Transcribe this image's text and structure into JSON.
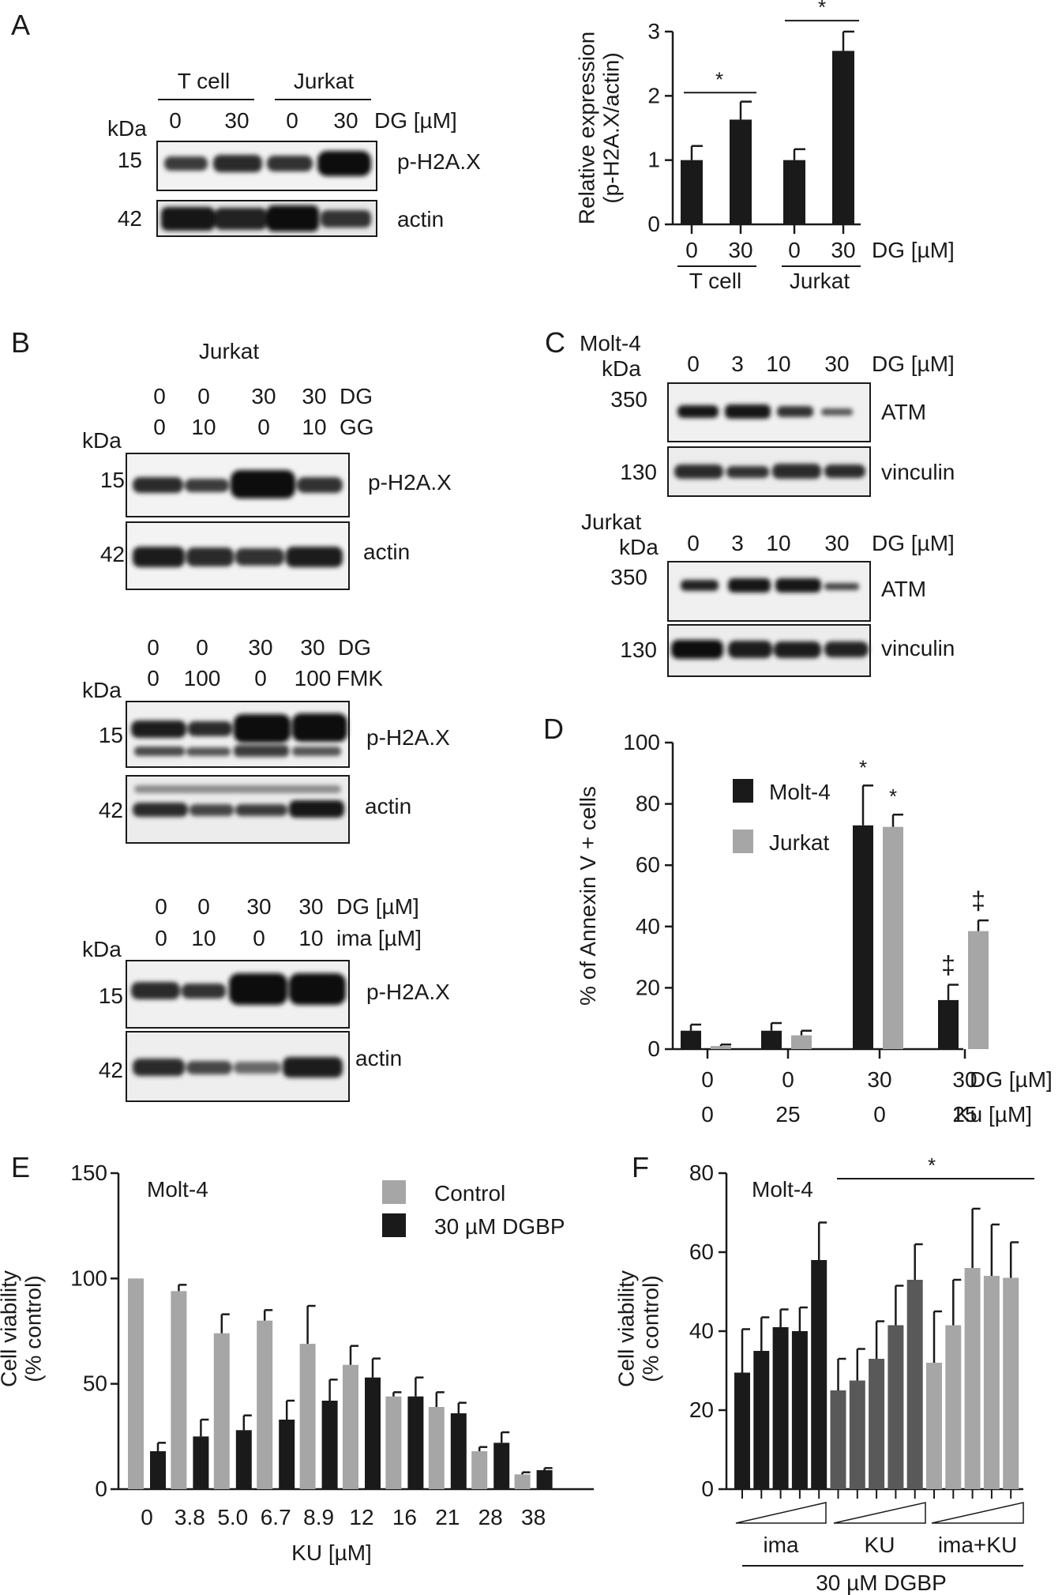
{
  "panels": {
    "A": {
      "letter": "A",
      "blot": {
        "groups": [
          "T cell",
          "Jurkat"
        ],
        "doses": [
          "0",
          "30",
          "0",
          "30"
        ],
        "dose_label": "DG [µM]",
        "kda": "kDa",
        "rows": [
          {
            "mw": "15",
            "name": "p-H2A.X"
          },
          {
            "mw": "42",
            "name": "actin"
          }
        ]
      }
    },
    "B": {
      "letter": "B",
      "cell_line": "Jurkat",
      "blots": [
        {
          "l1": [
            "0",
            "0",
            "30",
            "30"
          ],
          "l1_label": "DG",
          "l2": [
            "0",
            "10",
            "0",
            "10"
          ],
          "l2_label": "GG",
          "rows": [
            {
              "mw": "15",
              "name": "p-H2A.X"
            },
            {
              "mw": "42",
              "name": "actin"
            }
          ]
        },
        {
          "l1": [
            "0",
            "0",
            "30",
            "30"
          ],
          "l1_label": "DG",
          "l2": [
            "0",
            "100",
            "0",
            "100"
          ],
          "l2_label": "FMK",
          "rows": [
            {
              "mw": "15",
              "name": "p-H2A.X"
            },
            {
              "mw": "42",
              "name": "actin"
            }
          ]
        },
        {
          "l1": [
            "0",
            "0",
            "30",
            "30"
          ],
          "l1_label": "DG [µM]",
          "l2": [
            "0",
            "10",
            "0",
            "10"
          ],
          "l2_label": "ima [µM]",
          "rows": [
            {
              "mw": "15",
              "name": "p-H2A.X"
            },
            {
              "mw": "42",
              "name": "actin"
            }
          ]
        }
      ],
      "kda": "kDa"
    },
    "C": {
      "letter": "C",
      "blots": [
        {
          "cell_line": "Molt-4",
          "doses": [
            "0",
            "3",
            "10",
            "30"
          ],
          "dose_label": "DG [µM]",
          "rows": [
            {
              "mw": "350",
              "name": "ATM"
            },
            {
              "mw": "130",
              "name": "vinculin"
            }
          ]
        },
        {
          "cell_line": "Jurkat",
          "doses": [
            "0",
            "3",
            "10",
            "30"
          ],
          "dose_label": "DG [µM]",
          "rows": [
            {
              "mw": "350",
              "name": "ATM"
            },
            {
              "mw": "130",
              "name": "vinculin"
            }
          ]
        }
      ],
      "kda": "kDa"
    },
    "D": {
      "letter": "D"
    },
    "E": {
      "letter": "E"
    },
    "F": {
      "letter": "F"
    }
  },
  "colors": {
    "black_bar": "#1a1a1a",
    "gray_bar": "#a6a6a6",
    "dark_gray_bar": "#595959"
  },
  "chart_data": [
    {
      "id": "A",
      "type": "bar",
      "ylabel": "Relative expression\n(p-H2A.X/actin)",
      "ylim": [
        0,
        3
      ],
      "yticks": [
        "0",
        "1",
        "2",
        "3"
      ],
      "categories": [
        "0",
        "30",
        "0",
        "30"
      ],
      "category_label": "DG [µM]",
      "groups": [
        "T cell",
        "Jurkat"
      ],
      "values": [
        1.0,
        1.63,
        1.0,
        2.7
      ],
      "errors": [
        0.22,
        0.28,
        0.17,
        0.3
      ],
      "significance": [
        "*",
        "*"
      ]
    },
    {
      "id": "D",
      "type": "bar",
      "ylabel": "% of Annexin V + cells",
      "ylim": [
        0,
        100
      ],
      "yticks": [
        "0",
        "20",
        "40",
        "60",
        "80",
        "100"
      ],
      "row1": [
        "0",
        "0",
        "30",
        "30"
      ],
      "row1_label": "DG [µM]",
      "row2": [
        "0",
        "25",
        "0",
        "25"
      ],
      "row2_label": "Ku [µM]",
      "series": [
        {
          "name": "Molt-4",
          "color": "#1a1a1a",
          "values": [
            6,
            6,
            73,
            16
          ],
          "errors": [
            2,
            2.5,
            13,
            5
          ],
          "marks": [
            "",
            "",
            "*",
            "‡"
          ]
        },
        {
          "name": "Jurkat",
          "color": "#a6a6a6",
          "values": [
            1,
            4.5,
            72.5,
            38.5
          ],
          "errors": [
            0.5,
            1.5,
            4,
            3.5
          ],
          "marks": [
            "",
            "",
            "*",
            "‡"
          ]
        }
      ],
      "legend": "top-left"
    },
    {
      "id": "E",
      "type": "bar",
      "annotation": "Molt-4",
      "ylabel": "Cell viability\n(% control)",
      "xlabel": "KU  [µM]",
      "ylim": [
        0,
        150
      ],
      "yticks": [
        "0",
        "50",
        "100",
        "150"
      ],
      "categories": [
        "0",
        "3.8",
        "5.0",
        "6.7",
        "8.9",
        "12",
        "16",
        "21",
        "28",
        "38"
      ],
      "series": [
        {
          "name": "Control",
          "color": "#a6a6a6",
          "values": [
            100,
            94,
            74,
            80,
            69,
            59,
            44,
            39,
            18,
            7
          ],
          "errors": [
            0,
            3,
            9,
            5,
            18,
            9,
            2,
            7,
            2,
            1
          ]
        },
        {
          "name": "30 µM DGBP",
          "color": "#1a1a1a",
          "values": [
            18,
            25,
            28,
            33,
            42,
            53,
            44,
            36,
            22,
            9
          ],
          "errors": [
            4,
            8,
            7,
            9,
            10,
            9,
            9,
            5,
            5,
            1
          ]
        }
      ],
      "legend": "top-right"
    },
    {
      "id": "F",
      "type": "bar",
      "annotation": "Molt-4",
      "ylabel": "Cell viability\n(% control)",
      "xlabel": "30 µM DGBP",
      "ylim": [
        0,
        80
      ],
      "yticks": [
        "0",
        "20",
        "40",
        "60",
        "80"
      ],
      "groups": [
        "ima",
        "KU",
        "ima+KU"
      ],
      "series": [
        {
          "name": "ima",
          "color": "#1a1a1a",
          "values": [
            29.5,
            35,
            41,
            40,
            58
          ],
          "errors": [
            11,
            8.5,
            4.5,
            6,
            9.5
          ]
        },
        {
          "name": "KU",
          "color": "#595959",
          "values": [
            25,
            27.5,
            33,
            41.5,
            53
          ],
          "errors": [
            8,
            8,
            9.5,
            10,
            9
          ]
        },
        {
          "name": "ima+KU",
          "color": "#a6a6a6",
          "values": [
            32,
            41.5,
            56,
            54,
            53.5
          ],
          "errors": [
            13,
            11.5,
            15,
            13,
            9
          ]
        }
      ],
      "significance": "*"
    }
  ]
}
